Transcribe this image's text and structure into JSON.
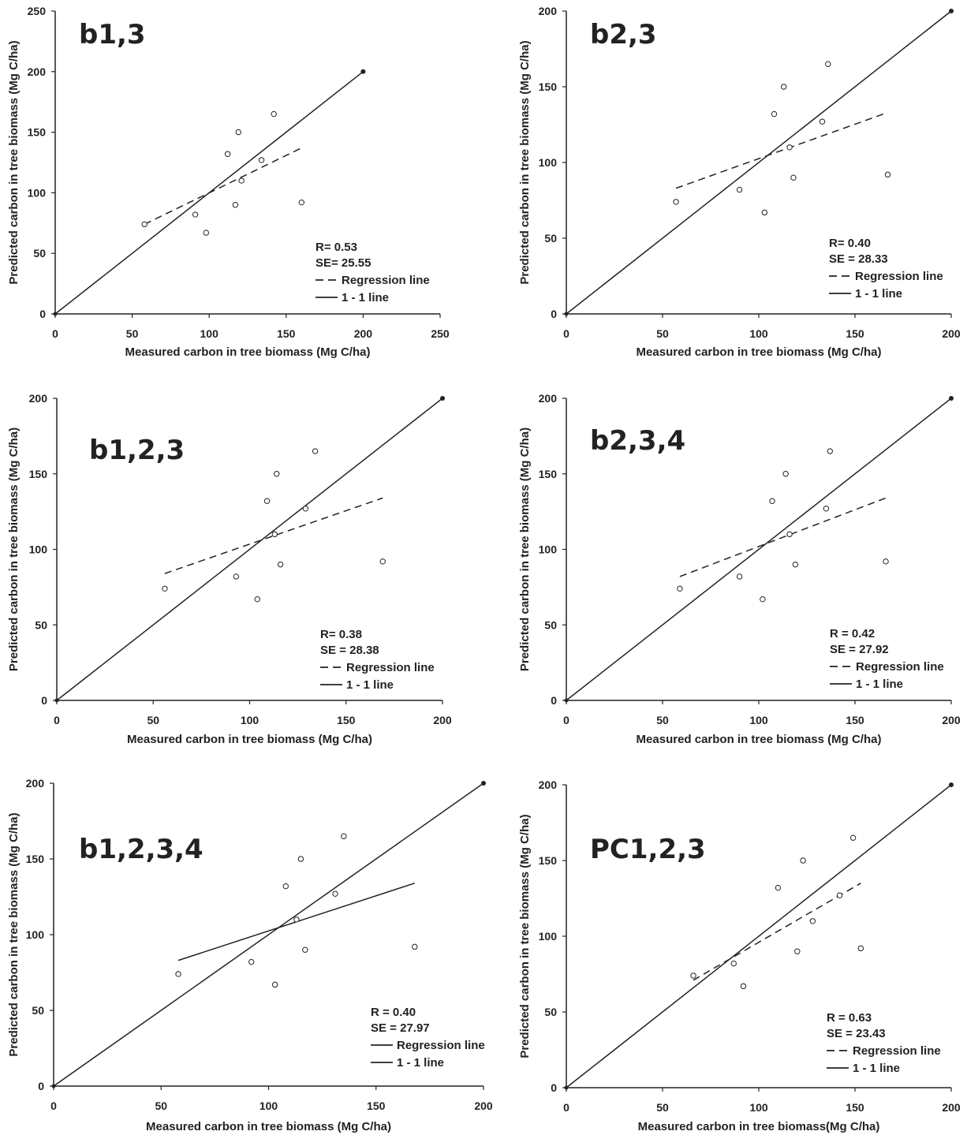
{
  "chart_data": [
    {
      "type": "scatter",
      "title": "b1,3",
      "xlabel": "Measured carbon in tree biomass (Mg C/ha)",
      "ylabel": "Predicted carbon in tree biomass (Mg C/ha)",
      "xlim": [
        0,
        250
      ],
      "ylim": [
        0,
        250
      ],
      "xticks": [
        "0",
        "50",
        "100",
        "150",
        "200",
        "250"
      ],
      "yticks": [
        "0",
        "50",
        "100",
        "150",
        "200",
        "250"
      ],
      "points": [
        [
          58,
          74
        ],
        [
          91,
          82
        ],
        [
          98,
          67
        ],
        [
          112,
          132
        ],
        [
          117,
          90
        ],
        [
          119,
          150
        ],
        [
          121,
          110
        ],
        [
          134,
          127
        ],
        [
          142,
          165
        ],
        [
          160,
          92
        ]
      ],
      "one_to_one": [
        [
          0,
          0
        ],
        [
          200,
          200
        ]
      ],
      "regression": {
        "style": "dashed",
        "from": [
          58,
          74
        ],
        "to": [
          160,
          137
        ]
      },
      "stats": [
        "R= 0.53",
        "SE= 25.55"
      ],
      "legend": [
        {
          "label": "Regression line",
          "style": "dashed"
        },
        {
          "label": "1 - 1 line",
          "style": "solid"
        }
      ]
    },
    {
      "type": "scatter",
      "title": "b2,3",
      "xlabel": "Measured carbon in tree biomass (Mg C/ha)",
      "ylabel": "Predicted carbon in tree biomass (Mg C/ha)",
      "xlim": [
        0,
        200
      ],
      "ylim": [
        0,
        200
      ],
      "xticks": [
        "0",
        "50",
        "100",
        "150",
        "200"
      ],
      "yticks": [
        "0",
        "50",
        "100",
        "150",
        "200"
      ],
      "points": [
        [
          57,
          74
        ],
        [
          90,
          82
        ],
        [
          103,
          67
        ],
        [
          108,
          132
        ],
        [
          113,
          150
        ],
        [
          116,
          110
        ],
        [
          118,
          90
        ],
        [
          133,
          127
        ],
        [
          136,
          165
        ],
        [
          167,
          92
        ]
      ],
      "one_to_one": [
        [
          0,
          0
        ],
        [
          200,
          200
        ]
      ],
      "regression": {
        "style": "dashed",
        "from": [
          57,
          83
        ],
        "to": [
          167,
          133
        ]
      },
      "stats": [
        "R= 0.40",
        "SE = 28.33"
      ],
      "legend": [
        {
          "label": "Regression line",
          "style": "dashed"
        },
        {
          "label": "1 - 1 line",
          "style": "solid"
        }
      ]
    },
    {
      "type": "scatter",
      "title": "b1,2,3",
      "xlabel": "Measured carbon in tree biomass (Mg C/ha)",
      "ylabel": "Predicted carbon in tree biomass (Mg C/ha)",
      "xlim": [
        0,
        200
      ],
      "ylim": [
        0,
        200
      ],
      "xticks": [
        "0",
        "50",
        "100",
        "150",
        "200"
      ],
      "yticks": [
        "0",
        "50",
        "100",
        "150",
        "200"
      ],
      "points": [
        [
          56,
          74
        ],
        [
          93,
          82
        ],
        [
          104,
          67
        ],
        [
          109,
          132
        ],
        [
          113,
          110
        ],
        [
          114,
          150
        ],
        [
          116,
          90
        ],
        [
          129,
          127
        ],
        [
          134,
          165
        ],
        [
          169,
          92
        ]
      ],
      "one_to_one": [
        [
          0,
          0
        ],
        [
          200,
          200
        ]
      ],
      "regression": {
        "style": "dashed",
        "from": [
          56,
          84
        ],
        "to": [
          169,
          134
        ]
      },
      "stats": [
        "R= 0.38",
        "SE = 28.38"
      ],
      "legend": [
        {
          "label": "Regression line",
          "style": "dashed"
        },
        {
          "label": "1 - 1 line",
          "style": "solid"
        }
      ]
    },
    {
      "type": "scatter",
      "title": "b2,3,4",
      "xlabel": "Measured carbon in tree biomass (Mg C/ha)",
      "ylabel": "Predicted carbon in tree biomass (Mg C/ha)",
      "xlim": [
        0,
        200
      ],
      "ylim": [
        0,
        200
      ],
      "xticks": [
        "0",
        "50",
        "100",
        "150",
        "200"
      ],
      "yticks": [
        "0",
        "50",
        "100",
        "150",
        "200"
      ],
      "points": [
        [
          59,
          74
        ],
        [
          90,
          82
        ],
        [
          102,
          67
        ],
        [
          107,
          132
        ],
        [
          114,
          150
        ],
        [
          116,
          110
        ],
        [
          119,
          90
        ],
        [
          135,
          127
        ],
        [
          137,
          165
        ],
        [
          166,
          92
        ]
      ],
      "one_to_one": [
        [
          0,
          0
        ],
        [
          200,
          200
        ]
      ],
      "regression": {
        "style": "dashed",
        "from": [
          59,
          82
        ],
        "to": [
          166,
          134
        ]
      },
      "stats": [
        "R = 0.42",
        "SE = 27.92"
      ],
      "legend": [
        {
          "label": "Regression line",
          "style": "dashed"
        },
        {
          "label": "1 - 1 line",
          "style": "solid"
        }
      ]
    },
    {
      "type": "scatter",
      "title": "b1,2,3,4",
      "xlabel": "Measured carbon in tree biomass (Mg C/ha)",
      "ylabel": "Predicted carbon in tree biomass (Mg C/ha)",
      "xlim": [
        0,
        200
      ],
      "ylim": [
        0,
        200
      ],
      "xticks": [
        "0",
        "50",
        "100",
        "150",
        "200"
      ],
      "yticks": [
        "0",
        "50",
        "100",
        "150",
        "200"
      ],
      "points": [
        [
          58,
          74
        ],
        [
          92,
          82
        ],
        [
          103,
          67
        ],
        [
          108,
          132
        ],
        [
          113,
          110
        ],
        [
          115,
          150
        ],
        [
          117,
          90
        ],
        [
          131,
          127
        ],
        [
          135,
          165
        ],
        [
          168,
          92
        ]
      ],
      "one_to_one": [
        [
          0,
          0
        ],
        [
          200,
          200
        ]
      ],
      "regression": {
        "style": "solid",
        "from": [
          58,
          83
        ],
        "to": [
          168,
          134
        ]
      },
      "stats": [
        "R = 0.40",
        "SE = 27.97"
      ],
      "legend": [
        {
          "label": "Regression line",
          "style": "solid"
        },
        {
          "label": "1 - 1 line",
          "style": "solid"
        }
      ]
    },
    {
      "type": "scatter",
      "title": "PC1,2,3",
      "xlabel": "Measured carbon in tree biomass(Mg C/ha)",
      "ylabel": "Predicted carbon in tree biomass (Mg C/ha)",
      "xlim": [
        0,
        200
      ],
      "ylim": [
        0,
        200
      ],
      "xticks": [
        "0",
        "50",
        "100",
        "150",
        "200"
      ],
      "yticks": [
        "0",
        "50",
        "100",
        "150",
        "200"
      ],
      "points": [
        [
          66,
          74
        ],
        [
          87,
          82
        ],
        [
          92,
          67
        ],
        [
          110,
          132
        ],
        [
          120,
          90
        ],
        [
          123,
          150
        ],
        [
          128,
          110
        ],
        [
          142,
          127
        ],
        [
          149,
          165
        ],
        [
          153,
          92
        ]
      ],
      "one_to_one": [
        [
          0,
          0
        ],
        [
          200,
          200
        ]
      ],
      "regression": {
        "style": "dashed",
        "from": [
          66,
          71
        ],
        "to": [
          153,
          135
        ]
      },
      "stats": [
        "R = 0.63",
        "SE = 23.43"
      ],
      "legend": [
        {
          "label": "Regression line",
          "style": "dashed"
        },
        {
          "label": "1 - 1 line",
          "style": "solid"
        }
      ]
    }
  ]
}
